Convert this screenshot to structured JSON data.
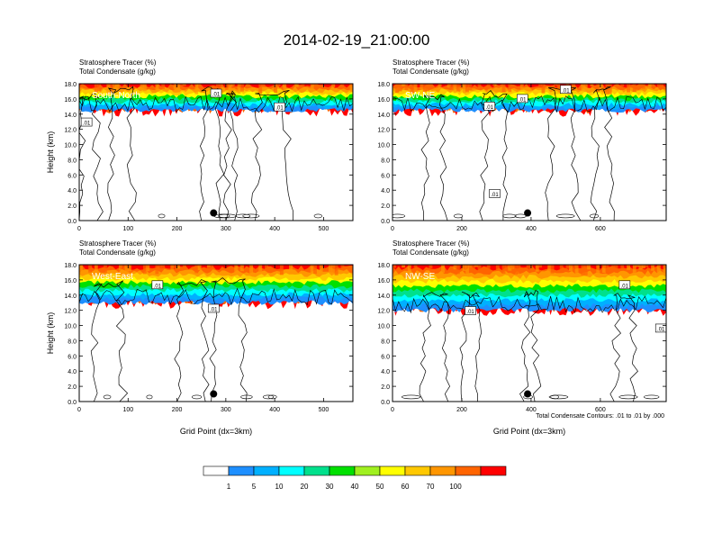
{
  "figure": {
    "title": "2014-02-19_21:00:00",
    "contour_note": "Total Condensate Contours: .01 to .01 by .000"
  },
  "colorbar": {
    "labels": [
      "1",
      "5",
      "10",
      "20",
      "30",
      "40",
      "50",
      "60",
      "70",
      "100"
    ],
    "colors": [
      "#ffffff",
      "#1e8fff",
      "#00b0ff",
      "#00ffff",
      "#00e08c",
      "#00e000",
      "#a0f020",
      "#ffff00",
      "#ffc800",
      "#ff9600",
      "#ff6400",
      "#ff0000"
    ]
  },
  "chart_data": [
    {
      "type": "contour",
      "panel": "south-north",
      "header_line1": "Stratosphere Tracer   (%)",
      "header_line2": "Total Condensate   (g/kg)",
      "label": "South-North",
      "ylabel": "Height (km)",
      "xlabel": "",
      "yticks": [
        "0.0",
        "2.0",
        "4.0",
        "6.0",
        "8.0",
        "10.0",
        "12.0",
        "14.0",
        "16.0",
        "18.0"
      ],
      "ylim": [
        0,
        18
      ],
      "xticks": [
        "0",
        "100",
        "200",
        "300",
        "400",
        "500"
      ],
      "xtick_values": [
        0,
        100,
        200,
        300,
        400,
        500
      ],
      "xlim": [
        0,
        560
      ],
      "contour_labels": [
        {
          "text": ".01",
          "x": 15,
          "y": 12.9
        },
        {
          "text": ".01",
          "x": 280,
          "y": 16.7
        },
        {
          "text": ".01",
          "x": 410,
          "y": 14.9
        }
      ],
      "marker": {
        "x": 275,
        "y": 1.0
      },
      "tracer_base_km": 14.5,
      "cloud_columns": [
        {
          "x0": 0,
          "x1": 40
        },
        {
          "x0": 60,
          "x1": 110
        },
        {
          "x0": 250,
          "x1": 290
        },
        {
          "x0": 300,
          "x1": 320
        },
        {
          "x0": 360,
          "x1": 430
        }
      ]
    },
    {
      "type": "contour",
      "panel": "sw-ne",
      "header_line1": "Stratosphere Tracer   (%)",
      "header_line2": "Total Condensate   (g/kg)",
      "label": "SW-NE",
      "ylabel": "",
      "xlabel": "",
      "yticks": [
        "0.0",
        "2.0",
        "4.0",
        "6.0",
        "8.0",
        "10.0",
        "12.0",
        "14.0",
        "16.0",
        "18.0"
      ],
      "ylim": [
        0,
        18
      ],
      "xticks": [
        "0",
        "200",
        "400",
        "600"
      ],
      "xtick_values": [
        0,
        200,
        400,
        600
      ],
      "xlim": [
        0,
        790
      ],
      "contour_labels": [
        {
          "text": ".01",
          "x": 280,
          "y": 15.0
        },
        {
          "text": ".01",
          "x": 375,
          "y": 16.0
        },
        {
          "text": ".01",
          "x": 500,
          "y": 17.2
        },
        {
          "text": ".01",
          "x": 295,
          "y": 3.5
        }
      ],
      "marker": {
        "x": 390,
        "y": 1.0
      },
      "tracer_base_km": 14.5,
      "cloud_columns": [
        {
          "x0": 90,
          "x1": 150
        },
        {
          "x0": 260,
          "x1": 330
        },
        {
          "x0": 450,
          "x1": 530
        },
        {
          "x0": 580,
          "x1": 630
        }
      ]
    },
    {
      "type": "contour",
      "panel": "west-east",
      "header_line1": "Stratosphere Tracer   (%)",
      "header_line2": "Total Condensate   (g/kg)",
      "label": "West-East",
      "ylabel": "Height (km)",
      "xlabel": "Grid Point (dx=3km)",
      "yticks": [
        "0.0",
        "2.0",
        "4.0",
        "6.0",
        "8.0",
        "10.0",
        "12.0",
        "14.0",
        "16.0",
        "18.0"
      ],
      "ylim": [
        0,
        18
      ],
      "xticks": [
        "0",
        "100",
        "200",
        "300",
        "400",
        "500"
      ],
      "xtick_values": [
        0,
        100,
        200,
        300,
        400,
        500
      ],
      "xlim": [
        0,
        560
      ],
      "contour_labels": [
        {
          "text": ".01",
          "x": 160,
          "y": 15.3
        },
        {
          "text": ".01",
          "x": 275,
          "y": 12.2
        }
      ],
      "marker": {
        "x": 275,
        "y": 1.0
      },
      "tracer_base_km": 13.0,
      "cloud_columns": [
        {
          "x0": 30,
          "x1": 90
        },
        {
          "x0": 200,
          "x1": 260
        },
        {
          "x0": 270,
          "x1": 340
        }
      ]
    },
    {
      "type": "contour",
      "panel": "nw-se",
      "header_line1": "Stratosphere Tracer   (%)",
      "header_line2": "Total Condensate   (g/kg)",
      "label": "NW-SE",
      "ylabel": "",
      "xlabel": "Grid Point (dx=3km)",
      "yticks": [
        "0.0",
        "2.0",
        "4.0",
        "6.0",
        "8.0",
        "10.0",
        "12.0",
        "14.0",
        "16.0",
        "18.0"
      ],
      "ylim": [
        0,
        18
      ],
      "xticks": [
        "0",
        "200",
        "400",
        "600"
      ],
      "xtick_values": [
        0,
        200,
        400,
        600
      ],
      "xlim": [
        0,
        790
      ],
      "contour_labels": [
        {
          "text": ".01",
          "x": 225,
          "y": 11.9
        },
        {
          "text": ".01",
          "x": 670,
          "y": 15.3
        },
        {
          "text": ".01",
          "x": 775,
          "y": 9.6
        }
      ],
      "marker": {
        "x": 390,
        "y": 1.0
      },
      "tracer_base_km": 12.0,
      "cloud_columns": [
        {
          "x0": 90,
          "x1": 160
        },
        {
          "x0": 200,
          "x1": 250
        },
        {
          "x0": 380,
          "x1": 420
        },
        {
          "x0": 640,
          "x1": 700
        }
      ]
    }
  ]
}
